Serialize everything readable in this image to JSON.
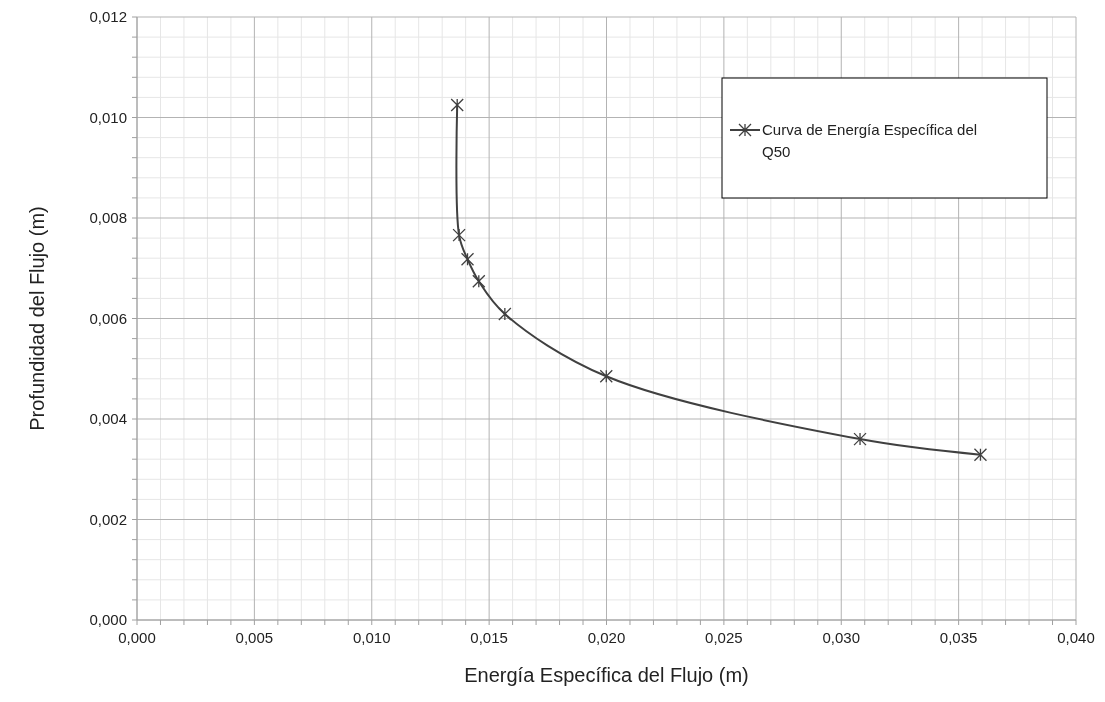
{
  "chart_data": {
    "type": "line",
    "xlabel": "Energía Específica del Flujo (m)",
    "ylabel": "Profundidad del Flujo (m)",
    "x": [
      0.01364,
      0.01372,
      0.01408,
      0.01456,
      0.01567,
      0.01999,
      0.0308,
      0.03593
    ],
    "series": [
      {
        "name": "Curva de Energía Específica del Q50",
        "color": "#404040",
        "values": [
          0.01025,
          0.00766,
          0.00718,
          0.00674,
          0.00609,
          0.00485,
          0.0036,
          0.00329
        ]
      }
    ],
    "xlim": [
      0,
      0.04
    ],
    "ylim": [
      0,
      0.012
    ],
    "xticks": [
      {
        "value": 0,
        "label": "0,000"
      },
      {
        "value": 0.005,
        "label": "0,005"
      },
      {
        "value": 0.01,
        "label": "0,010"
      },
      {
        "value": 0.015,
        "label": "0,015"
      },
      {
        "value": 0.02,
        "label": "0,020"
      },
      {
        "value": 0.025,
        "label": "0,025"
      },
      {
        "value": 0.03,
        "label": "0,030"
      },
      {
        "value": 0.035,
        "label": "0,035"
      },
      {
        "value": 0.04,
        "label": "0,040"
      }
    ],
    "yticks": [
      {
        "value": 0,
        "label": "0,000"
      },
      {
        "value": 0.002,
        "label": "0,002"
      },
      {
        "value": 0.004,
        "label": "0,004"
      },
      {
        "value": 0.006,
        "label": "0,006"
      },
      {
        "value": 0.008,
        "label": "0,008"
      },
      {
        "value": 0.01,
        "label": "0,010"
      },
      {
        "value": 0.012,
        "label": "0,012"
      }
    ],
    "grid": true,
    "legend": "top right",
    "marker": "cross",
    "line_style": "solid"
  }
}
